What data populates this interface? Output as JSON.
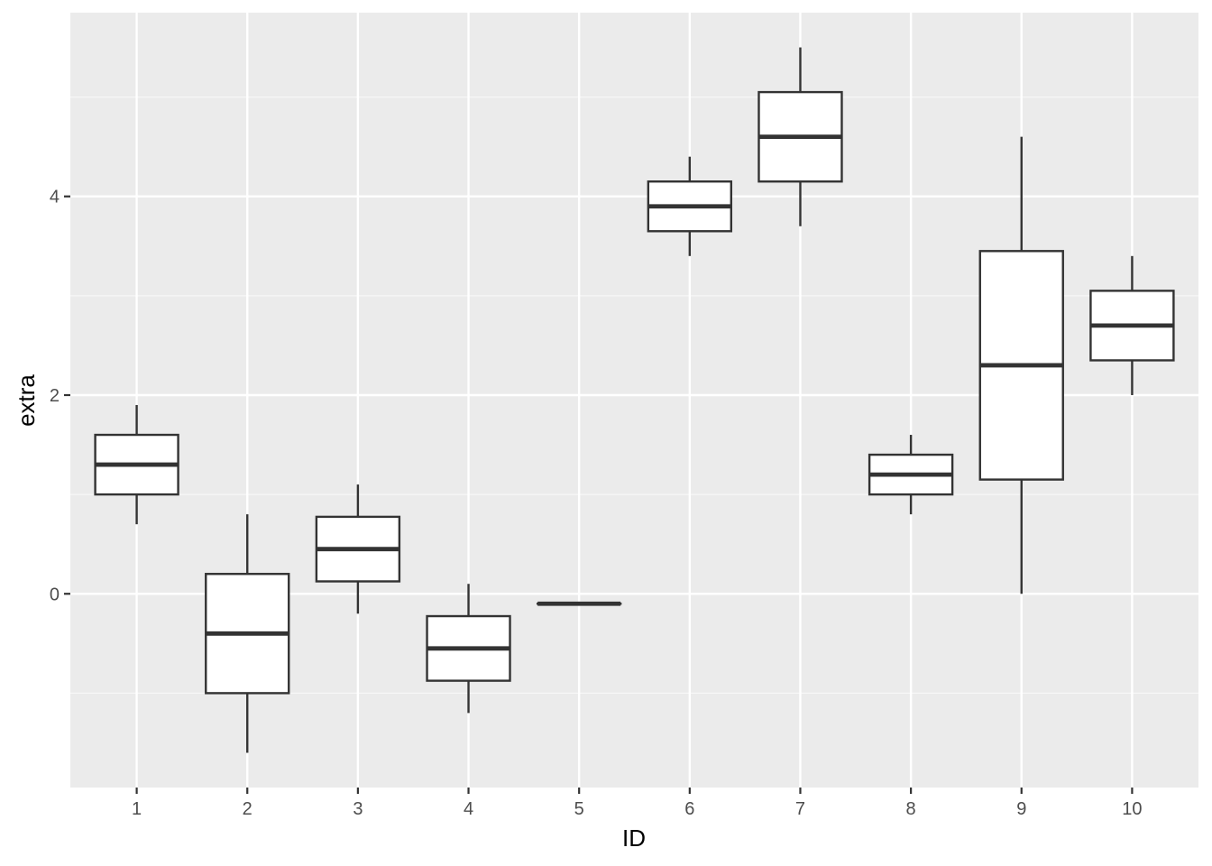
{
  "chart_data": {
    "type": "boxplot",
    "xlabel": "ID",
    "ylabel": "extra",
    "categories": [
      "1",
      "2",
      "3",
      "4",
      "5",
      "6",
      "7",
      "8",
      "9",
      "10"
    ],
    "y_ticks": [
      0,
      2,
      4
    ],
    "y_tick_labels": [
      "0",
      "2",
      "4"
    ],
    "ylim": [
      -1.95,
      5.85
    ],
    "grid": true,
    "boxes": [
      {
        "id": "1",
        "min": 0.7,
        "q1": 1.0,
        "median": 1.3,
        "q3": 1.6,
        "max": 1.9
      },
      {
        "id": "2",
        "min": -1.6,
        "q1": -1.0,
        "median": -0.4,
        "q3": 0.2,
        "max": 0.8
      },
      {
        "id": "3",
        "min": -0.2,
        "q1": 0.125,
        "median": 0.45,
        "q3": 0.775,
        "max": 1.1
      },
      {
        "id": "4",
        "min": -1.2,
        "q1": -0.875,
        "median": -0.55,
        "q3": -0.225,
        "max": 0.1
      },
      {
        "id": "5",
        "min": -0.1,
        "q1": -0.1,
        "median": -0.1,
        "q3": -0.1,
        "max": -0.1
      },
      {
        "id": "6",
        "min": 3.4,
        "q1": 3.65,
        "median": 3.9,
        "q3": 4.15,
        "max": 4.4
      },
      {
        "id": "7",
        "min": 3.7,
        "q1": 4.15,
        "median": 4.6,
        "q3": 5.05,
        "max": 5.5
      },
      {
        "id": "8",
        "min": 0.8,
        "q1": 1.0,
        "median": 1.2,
        "q3": 1.4,
        "max": 1.6
      },
      {
        "id": "9",
        "min": 0.0,
        "q1": 1.15,
        "median": 2.3,
        "q3": 3.45,
        "max": 4.6
      },
      {
        "id": "10",
        "min": 2.0,
        "q1": 2.35,
        "median": 2.7,
        "q3": 3.05,
        "max": 3.4
      }
    ],
    "colors": {
      "panel_background": "#ebebeb",
      "grid_major": "#ffffff",
      "grid_minor": "#f7f7f7",
      "box_fill": "#ffffff",
      "box_stroke": "#333333",
      "tick_text": "#4d4d4d",
      "axis_title": "#000000"
    }
  }
}
